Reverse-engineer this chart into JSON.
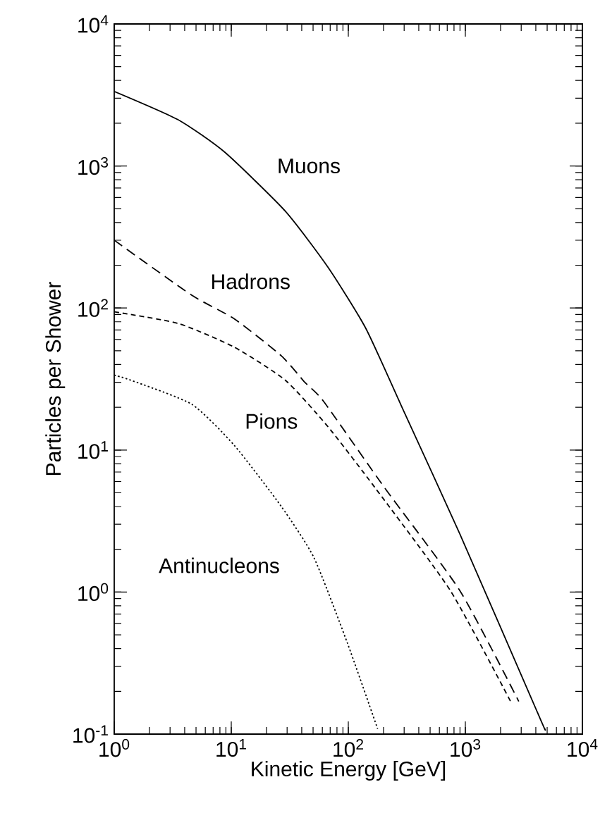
{
  "chart_data": {
    "type": "line",
    "xlabel": "Kinetic Energy [GeV]",
    "ylabel": "Particles per Shower",
    "log": "xy",
    "xlim": [
      1,
      10000
    ],
    "ylim": [
      0.1,
      10000
    ],
    "xticks": [
      {
        "value": 1,
        "label": "10$^{0}$"
      },
      {
        "value": 10,
        "label": "10$^{1}$"
      },
      {
        "value": 100,
        "label": "10$^{2}$"
      },
      {
        "value": 1000,
        "label": "10$^{3}$"
      },
      {
        "value": 10000,
        "label": "10$^{4}$"
      }
    ],
    "yticks": [
      {
        "value": 0.1,
        "label": "10$^{-1}$"
      },
      {
        "value": 1,
        "label": "10$^{0}$"
      },
      {
        "value": 10,
        "label": "10$^{1}$"
      },
      {
        "value": 100,
        "label": "10$^{2}$"
      },
      {
        "value": 1000,
        "label": "10$^{3}$"
      },
      {
        "value": 10000,
        "label": "10$^{4}$"
      }
    ],
    "grid": false,
    "legend": false,
    "series": [
      {
        "name": "Muons",
        "color": "#000000",
        "line_style": "solid",
        "x": [
          1,
          3.5,
          8.8,
          29,
          67,
          141,
          283,
          900,
          4330,
          4750
        ],
        "values": [
          3350,
          2120,
          1250,
          480,
          194,
          72,
          20.6,
          2.55,
          0.13,
          0.11
        ]
      },
      {
        "name": "Hadrons",
        "color": "#000000",
        "line_style": "dashed",
        "x": [
          1,
          4.6,
          10.6,
          26.8,
          42.5,
          61.5,
          205,
          900,
          2860
        ],
        "values": [
          300,
          123,
          84,
          46,
          30,
          22,
          5.4,
          1.02,
          0.17
        ]
      },
      {
        "name": "Pions",
        "color": "#000000",
        "line_style": "dashed",
        "x": [
          1,
          3.5,
          10.6,
          29,
          67,
          170,
          747,
          2480
        ],
        "values": [
          94,
          78,
          53,
          31,
          14.6,
          5.4,
          1.02,
          0.165
        ]
      },
      {
        "name": "Antinucleons",
        "color": "#000000",
        "line_style": "dotted",
        "x": [
          1,
          1.39,
          4.6,
          10.6,
          26.8,
          51,
          98,
          178
        ],
        "values": [
          33.7,
          31,
          21,
          10.8,
          4.0,
          1.74,
          0.44,
          0.109
        ]
      }
    ]
  }
}
